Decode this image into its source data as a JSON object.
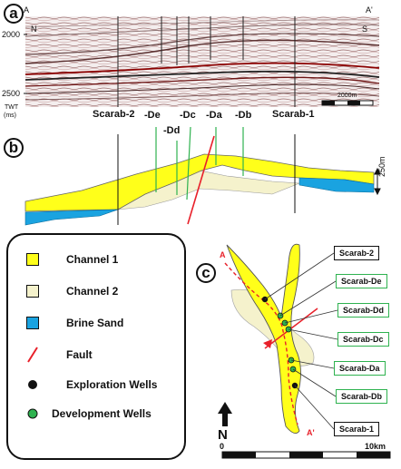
{
  "panels": {
    "a": "a",
    "b": "b",
    "c": "c"
  },
  "seismic": {
    "end_left": "A",
    "end_right": "A'",
    "dir_left": "N",
    "dir_right": "S",
    "y_tick_top": "2000",
    "y_tick_bottom": "2500",
    "y_unit_line1": "TWT",
    "y_unit_line2": "(ms)",
    "scale_label": "2000m"
  },
  "wells": {
    "scarab2": "Scarab-2",
    "de": "-De",
    "dd": "-Dd",
    "dc": "-Dc",
    "da": "-Da",
    "db": "-Db",
    "scarab1": "Scarab-1"
  },
  "cross_section": {
    "thickness_label": "250m"
  },
  "legend": {
    "channel1": "Channel 1",
    "channel2": "Channel 2",
    "brine_sand": "Brine Sand",
    "fault": "Fault",
    "exploration_wells": "Exploration Wells",
    "development_wells": "Development Wells"
  },
  "map": {
    "end_a": "A",
    "end_a_prime": "A'",
    "north": "N",
    "scale_start": "0",
    "scale_end": "10km",
    "tags": {
      "scarab2": "Scarab-2",
      "de": "Scarab-De",
      "dd": "Scarab-Dd",
      "dc": "Scarab-Dc",
      "da": "Scarab-Da",
      "db": "Scarab-Db",
      "scarab1": "Scarab-1"
    }
  },
  "colors": {
    "channel1": "#ffff1a",
    "channel2": "#f5f2cc",
    "brine": "#1aa3e0",
    "fault": "#e8202a",
    "exploration": "#111111",
    "development": "#2eb24f"
  }
}
